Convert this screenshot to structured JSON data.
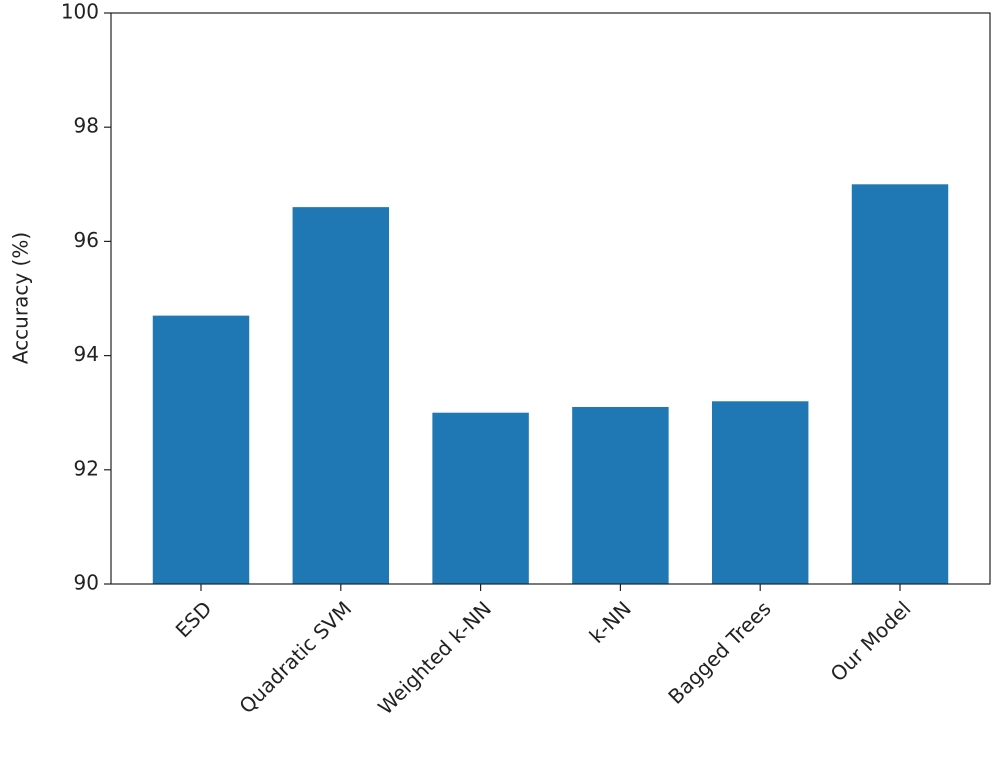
{
  "chart_data": {
    "type": "bar",
    "y_label": "Accuracy (%)",
    "categories": [
      "ESD",
      "Quadratic SVM",
      "Weighted k-NN",
      "k-NN",
      "Bagged Trees",
      "Our Model"
    ],
    "values": [
      94.7,
      96.6,
      93.0,
      93.1,
      93.2,
      97.0
    ],
    "color": "#1f77b4",
    "ylim": [
      90,
      100
    ],
    "yticks": [
      90,
      92,
      94,
      96,
      98,
      100
    ]
  }
}
